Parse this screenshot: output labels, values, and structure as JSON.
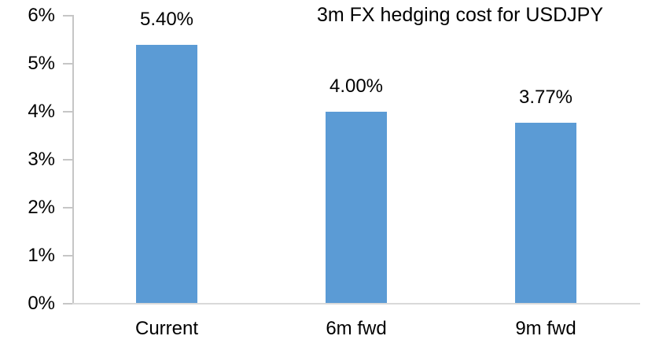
{
  "chart_data": {
    "type": "bar",
    "title": "3m FX hedging cost for USDJPY",
    "categories": [
      "Current",
      "6m fwd",
      "9m fwd"
    ],
    "values": [
      5.4,
      4.0,
      3.77
    ],
    "value_labels": [
      "5.40%",
      "4.00%",
      "3.77%"
    ],
    "y_ticks": [
      "0%",
      "1%",
      "2%",
      "3%",
      "4%",
      "5%",
      "6%"
    ],
    "y_tick_values": [
      0,
      1,
      2,
      3,
      4,
      5,
      6
    ],
    "ylim": [
      0,
      6
    ],
    "xlabel": "",
    "ylabel": "",
    "legend_position": "none",
    "grid": "off",
    "colors": {
      "bar": "#5B9BD5",
      "axis": "#C6C6C6",
      "baseline": "#D9D9D9",
      "text": "#000000",
      "background": "#FFFFFF"
    }
  }
}
